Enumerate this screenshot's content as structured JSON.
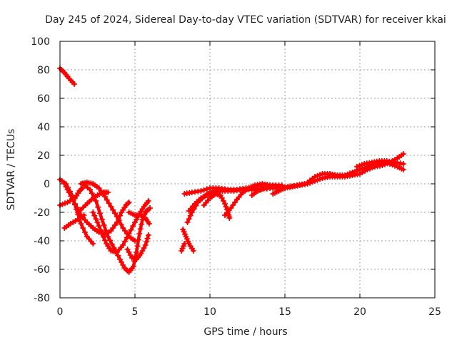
{
  "chart_data": {
    "type": "scatter",
    "title": "Day 245 of 2024, Sidereal Day-to-day VTEC variation (SDTVAR) for receiver kkai",
    "xlabel": "GPS time / hours",
    "ylabel": "SDTVAR / TECUs",
    "xlim": [
      0,
      25
    ],
    "ylim": [
      -80,
      100
    ],
    "xticks": [
      "0",
      "5",
      "10",
      "15",
      "20",
      "25"
    ],
    "yticks": [
      "-80",
      "-60",
      "-40",
      "-20",
      "0",
      "20",
      "40",
      "60",
      "80",
      "100"
    ],
    "grid": true,
    "marker": "plus",
    "color": "#ff0000",
    "series": [
      {
        "name": "s1",
        "points": [
          [
            0,
            81
          ],
          [
            0.3,
            78
          ],
          [
            0.6,
            74
          ],
          [
            0.95,
            70
          ]
        ]
      },
      {
        "name": "s2",
        "points": [
          [
            0,
            3
          ],
          [
            0.4,
            0
          ],
          [
            0.8,
            -8
          ],
          [
            1.1,
            -18
          ],
          [
            1.4,
            -28
          ],
          [
            1.8,
            -37
          ],
          [
            2.2,
            -42
          ]
        ]
      },
      {
        "name": "s3",
        "points": [
          [
            0,
            -15
          ],
          [
            0.5,
            -13
          ],
          [
            1.0,
            -10
          ],
          [
            1.3,
            -5
          ],
          [
            1.5,
            -3
          ]
        ]
      },
      {
        "name": "s4",
        "points": [
          [
            0.3,
            0
          ],
          [
            0.6,
            -6
          ],
          [
            1.0,
            -14
          ],
          [
            1.4,
            -22
          ],
          [
            1.8,
            -27
          ],
          [
            2.2,
            -31
          ],
          [
            2.6,
            -34
          ],
          [
            3.0,
            -35
          ],
          [
            3.4,
            -33
          ],
          [
            3.8,
            -27
          ],
          [
            4.1,
            -20
          ],
          [
            4.4,
            -15
          ],
          [
            4.6,
            -13
          ]
        ]
      },
      {
        "name": "s5",
        "points": [
          [
            1.5,
            0
          ],
          [
            2.0,
            -4
          ],
          [
            2.4,
            -12
          ],
          [
            2.8,
            -25
          ],
          [
            3.2,
            -37
          ],
          [
            3.6,
            -45
          ],
          [
            4.0,
            -53
          ],
          [
            4.3,
            -59
          ],
          [
            4.6,
            -62
          ],
          [
            4.9,
            -58
          ],
          [
            5.1,
            -48
          ],
          [
            5.3,
            -35
          ],
          [
            5.5,
            -25
          ],
          [
            5.7,
            -20
          ],
          [
            6.0,
            -17
          ]
        ]
      },
      {
        "name": "s6",
        "points": [
          [
            1.2,
            -20
          ],
          [
            1.7,
            -15
          ],
          [
            2.1,
            -11
          ],
          [
            2.5,
            -8
          ],
          [
            2.9,
            -6
          ],
          [
            3.2,
            -6
          ]
        ]
      },
      {
        "name": "s7",
        "points": [
          [
            1.4,
            0
          ],
          [
            1.8,
            1
          ],
          [
            2.2,
            0
          ],
          [
            2.6,
            -3
          ],
          [
            3.0,
            -9
          ],
          [
            3.4,
            -16
          ],
          [
            3.8,
            -23
          ],
          [
            4.2,
            -31
          ],
          [
            4.6,
            -37
          ],
          [
            5.0,
            -40
          ]
        ]
      },
      {
        "name": "s8",
        "points": [
          [
            0.3,
            -31
          ],
          [
            0.7,
            -28
          ],
          [
            1.2,
            -25
          ],
          [
            1.6,
            -22
          ]
        ]
      },
      {
        "name": "s9",
        "points": [
          [
            2.2,
            -20
          ],
          [
            2.5,
            -27
          ],
          [
            2.8,
            -35
          ],
          [
            3.1,
            -42
          ],
          [
            3.4,
            -47
          ],
          [
            3.8,
            -48
          ],
          [
            4.2,
            -43
          ],
          [
            4.6,
            -35
          ],
          [
            5.0,
            -27
          ],
          [
            5.3,
            -21
          ],
          [
            5.6,
            -16
          ],
          [
            5.9,
            -12
          ]
        ]
      },
      {
        "name": "s10",
        "points": [
          [
            4.5,
            -46
          ],
          [
            4.8,
            -52
          ],
          [
            5.1,
            -53
          ],
          [
            5.4,
            -49
          ],
          [
            5.7,
            -43
          ],
          [
            5.9,
            -36
          ]
        ]
      },
      {
        "name": "s11",
        "points": [
          [
            4.6,
            -20
          ],
          [
            5.0,
            -22
          ],
          [
            5.4,
            -22
          ],
          [
            5.7,
            -24
          ],
          [
            5.95,
            -28
          ]
        ]
      },
      {
        "name": "s12",
        "points": [
          [
            8.2,
            -32
          ],
          [
            8.4,
            -37
          ],
          [
            8.6,
            -42
          ],
          [
            8.9,
            -47
          ]
        ]
      },
      {
        "name": "s13",
        "points": [
          [
            8.1,
            -47
          ],
          [
            8.3,
            -42
          ]
        ]
      },
      {
        "name": "s14",
        "points": [
          [
            8.5,
            -27
          ],
          [
            8.8,
            -20
          ],
          [
            9.2,
            -13
          ],
          [
            9.6,
            -9
          ],
          [
            10.0,
            -6
          ],
          [
            10.5,
            -5
          ],
          [
            11.0,
            -5
          ],
          [
            11.6,
            -5
          ],
          [
            12.2,
            -4
          ],
          [
            12.8,
            -4
          ],
          [
            13.4,
            -4
          ],
          [
            14.0,
            -3
          ],
          [
            14.6,
            -3
          ],
          [
            15.2,
            -2
          ],
          [
            15.8,
            -1
          ],
          [
            16.3,
            0
          ]
        ]
      },
      {
        "name": "s15",
        "points": [
          [
            8.3,
            -7
          ],
          [
            8.8,
            -6
          ],
          [
            9.4,
            -5
          ],
          [
            10.0,
            -3
          ],
          [
            10.6,
            -3
          ],
          [
            11.2,
            -4
          ],
          [
            11.8,
            -4
          ],
          [
            12.4,
            -3
          ],
          [
            13.0,
            -2
          ],
          [
            13.6,
            -1
          ],
          [
            14.2,
            -1
          ],
          [
            14.8,
            -1
          ]
        ]
      },
      {
        "name": "s16",
        "points": [
          [
            8.6,
            -19
          ],
          [
            9.0,
            -14
          ],
          [
            9.4,
            -10
          ],
          [
            9.8,
            -8
          ],
          [
            10.2,
            -6
          ]
        ]
      },
      {
        "name": "s17",
        "points": [
          [
            9.6,
            -15
          ],
          [
            10.0,
            -10
          ],
          [
            10.4,
            -7
          ],
          [
            10.7,
            -8
          ],
          [
            11.0,
            -14
          ],
          [
            11.2,
            -20
          ],
          [
            11.3,
            -24
          ]
        ]
      },
      {
        "name": "s18",
        "points": [
          [
            11.0,
            -22
          ],
          [
            11.4,
            -17
          ],
          [
            11.8,
            -11
          ],
          [
            12.2,
            -6
          ],
          [
            12.6,
            -3
          ],
          [
            13.0,
            -1
          ],
          [
            13.5,
            0
          ],
          [
            14.0,
            -1
          ],
          [
            14.5,
            -2
          ],
          [
            15.0,
            -3
          ]
        ]
      },
      {
        "name": "s19",
        "points": [
          [
            12.8,
            -8
          ],
          [
            13.2,
            -5
          ],
          [
            13.6,
            -3
          ]
        ]
      },
      {
        "name": "s20",
        "points": [
          [
            14.2,
            -7
          ],
          [
            14.6,
            -5
          ],
          [
            15.0,
            -3
          ],
          [
            15.5,
            -2
          ],
          [
            16.0,
            -1
          ],
          [
            16.5,
            0
          ],
          [
            17.0,
            2
          ],
          [
            17.5,
            4
          ],
          [
            18.0,
            5
          ],
          [
            18.5,
            5
          ],
          [
            19.0,
            5
          ],
          [
            19.5,
            6
          ],
          [
            20.0,
            7
          ],
          [
            20.5,
            10
          ],
          [
            21.0,
            12
          ],
          [
            21.5,
            13
          ],
          [
            22.0,
            15
          ],
          [
            22.5,
            18
          ],
          [
            22.9,
            21
          ]
        ]
      },
      {
        "name": "s21",
        "points": [
          [
            16.5,
            1
          ],
          [
            17.0,
            5
          ],
          [
            17.5,
            7
          ],
          [
            18.0,
            7
          ],
          [
            18.5,
            6
          ],
          [
            19.0,
            6
          ],
          [
            19.5,
            8
          ],
          [
            20.0,
            10
          ],
          [
            20.5,
            12
          ],
          [
            21.0,
            14
          ],
          [
            21.5,
            15
          ],
          [
            22.0,
            14
          ],
          [
            22.5,
            12
          ],
          [
            22.9,
            10
          ]
        ]
      },
      {
        "name": "s22",
        "points": [
          [
            19.8,
            12
          ],
          [
            20.3,
            14
          ],
          [
            20.8,
            15
          ],
          [
            21.3,
            16
          ],
          [
            21.8,
            16
          ],
          [
            22.3,
            15
          ],
          [
            22.9,
            14
          ]
        ]
      }
    ]
  }
}
